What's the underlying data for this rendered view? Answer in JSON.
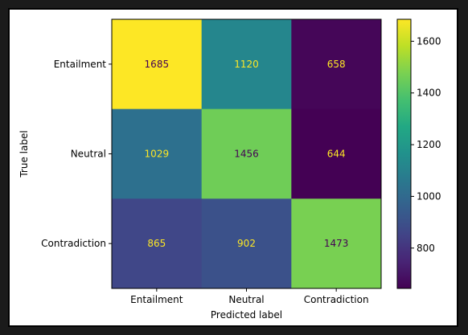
{
  "chart_data": {
    "type": "heatmap",
    "title": "",
    "xlabel": "Predicted label",
    "ylabel": "True label",
    "x_categories": [
      "Entailment",
      "Neutral",
      "Contradiction"
    ],
    "y_categories": [
      "Entailment",
      "Neutral",
      "Contradiction"
    ],
    "values": [
      [
        1685,
        1120,
        658
      ],
      [
        1029,
        1456,
        644
      ],
      [
        865,
        902,
        1473
      ]
    ],
    "colormap": "viridis",
    "colorbar": {
      "range": [
        644,
        1685
      ],
      "ticks": [
        800,
        1000,
        1200,
        1400,
        1600
      ]
    },
    "text_colors": {
      "low": "#fde725",
      "high": "#440154"
    },
    "grid": false
  }
}
